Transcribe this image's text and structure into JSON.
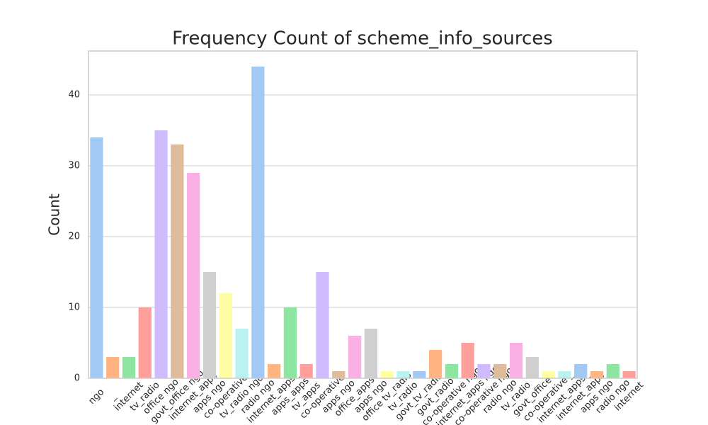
{
  "chart_data": {
    "type": "bar",
    "title": "Frequency Count of scheme_info_sources",
    "y_label": "Count",
    "categories": [
      "ngo",
      "_",
      "internet",
      "tv_radio",
      "office ngo",
      "govt_office ngo",
      "internet_apps",
      "apps ngo",
      "co-operative",
      "tv_radio ngo",
      "radio ngo",
      "internet_apps _",
      "apps_apps",
      "tv_apps",
      "co-operative",
      "apps ngo",
      "office_apps",
      "apps ngo",
      "office tv_radio",
      "tv_radio",
      "govt_tv_radio",
      "govt_radio",
      "co-operative ngo",
      "internet_apps ngo",
      "co-operative ngo",
      "radio ngo",
      "tv_radio",
      "govt_office",
      "co-operative _",
      "internet_apps _",
      "internet_apps",
      "apps ngo",
      "radio ngo",
      "internet"
    ],
    "values": [
      34,
      3,
      3,
      10,
      35,
      33,
      29,
      15,
      12,
      7,
      44,
      2,
      10,
      2,
      15,
      1,
      6,
      7,
      1,
      1,
      1,
      4,
      2,
      5,
      2,
      2,
      5,
      3,
      1,
      1,
      2,
      1,
      2,
      1
    ],
    "colors": [
      "#a1c9f4",
      "#ffb482",
      "#8de5a1",
      "#ff9f9b",
      "#d0bbff",
      "#debb9b",
      "#fab0e4",
      "#cfcfcf",
      "#fffea3",
      "#b9f2f0"
    ],
    "ylim": [
      0,
      46.2
    ],
    "yticks": [
      0,
      10,
      20,
      30,
      40
    ],
    "grid": true
  }
}
